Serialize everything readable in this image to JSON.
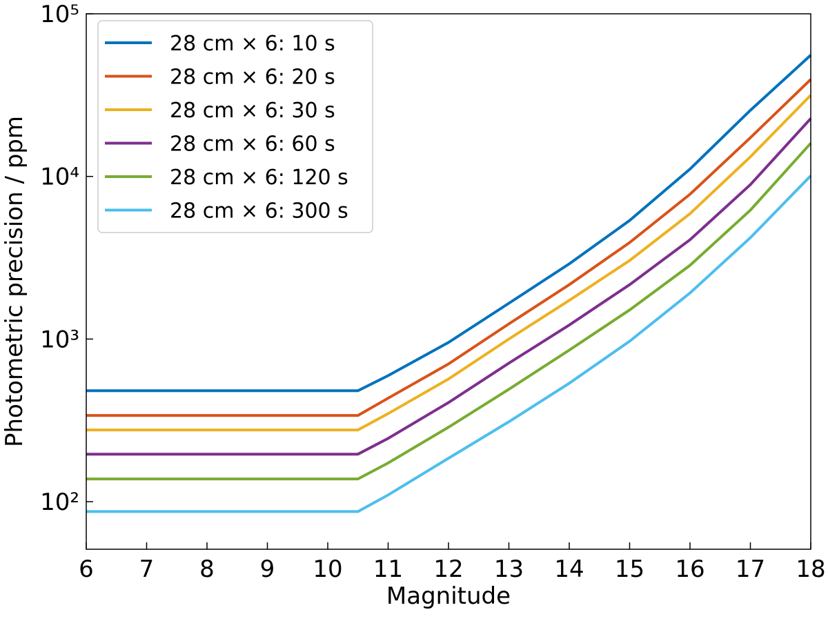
{
  "chart_data": {
    "type": "line",
    "x_label": "Magnitude",
    "y_label": "Photometric precision / ppm",
    "x": [
      6,
      10.5,
      11,
      12,
      13,
      14,
      15,
      16,
      17,
      18
    ],
    "series": [
      {
        "name": "28 cm × 6: 10 s",
        "color": "#0072bd",
        "values": [
          481,
          481,
          596,
          953,
          1660,
          2900,
          5360,
          11100,
          25500,
          55700
        ]
      },
      {
        "name": "28 cm × 6: 20 s",
        "color": "#d95319",
        "values": [
          339,
          339,
          433,
          703,
          1240,
          2160,
          3920,
          7770,
          17300,
          39500
        ]
      },
      {
        "name": "28 cm × 6: 30 s",
        "color": "#edb120",
        "values": [
          276,
          276,
          348,
          568,
          1000,
          1730,
          3040,
          5900,
          13200,
          31600
        ]
      },
      {
        "name": "28 cm × 6: 60 s",
        "color": "#7e2f8e",
        "values": [
          196,
          196,
          245,
          407,
          711,
          1220,
          2160,
          4080,
          8900,
          22700
        ]
      },
      {
        "name": "28 cm × 6: 120 s",
        "color": "#77ac30",
        "values": [
          138,
          138,
          173,
          287,
          491,
          855,
          1510,
          2840,
          6200,
          16000
        ]
      },
      {
        "name": "28 cm × 6: 300 s",
        "color": "#4dbeee",
        "values": [
          87,
          87,
          110,
          185,
          310,
          535,
          970,
          1920,
          4200,
          10100
        ]
      }
    ],
    "xlim": [
      6,
      18
    ],
    "xticks": [
      6,
      7,
      8,
      9,
      10,
      11,
      12,
      13,
      14,
      15,
      16,
      17,
      18
    ],
    "ylim": [
      51,
      100000
    ],
    "yticks": [
      {
        "value": 100,
        "label": "10²"
      },
      {
        "value": 1000,
        "label": "10³"
      },
      {
        "value": 10000,
        "label": "10⁴"
      },
      {
        "value": 100000,
        "label": "10⁵"
      }
    ],
    "y_log": true,
    "legend": "upper left"
  }
}
